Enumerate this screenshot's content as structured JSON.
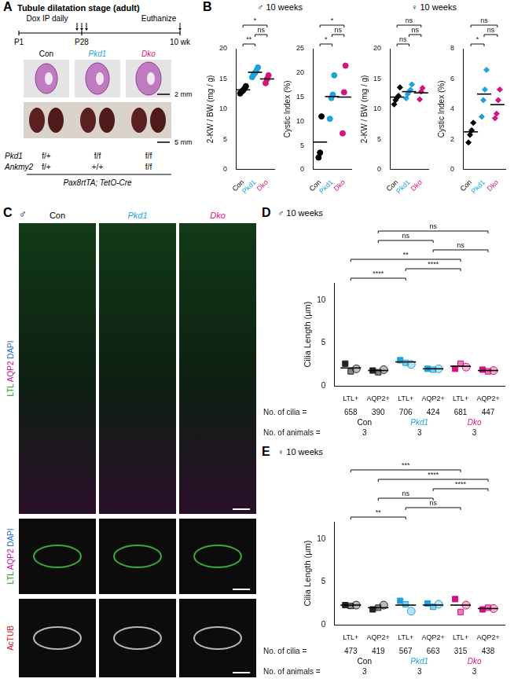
{
  "panel_a": {
    "label": "A",
    "title": "Tubule dilatation stage (adult)",
    "timeline": [
      "P1",
      "P28",
      "10 wk"
    ],
    "injection": "Dox IP daily",
    "endpoint": "Euthanize",
    "groups": [
      "Con",
      "Pkd1",
      "Dko"
    ],
    "group_colors": [
      "#000000",
      "#1fa2dc",
      "#d6127f"
    ],
    "scale_bars": [
      "2 mm",
      "5 mm"
    ],
    "genotypes": [
      {
        "gene": "Pkd1",
        "values": [
          "f/+",
          "f/f",
          "f/f"
        ]
      },
      {
        "gene": "Ankmy2",
        "values": [
          "f/+",
          "+/+",
          "f/f"
        ]
      }
    ],
    "driver": "Pax8rtTA; TetO-Cre"
  },
  "panel_b": {
    "label": "B",
    "headers": [
      "♂ 10 weeks",
      "♀ 10 weeks"
    ]
  },
  "panel_c": {
    "label": "C",
    "sex": "♂",
    "groups": [
      "Con",
      "Pkd1",
      "Dko"
    ],
    "group_colors": [
      "#000000",
      "#1fa2dc",
      "#d6127f"
    ],
    "stains": [
      [
        {
          "text": "LTL",
          "color": "#1a9e1a"
        },
        {
          "text": "AQP2",
          "color": "#c0169c"
        },
        {
          "text": "DAPI",
          "color": "#1f6fd0"
        }
      ],
      [
        {
          "text": "LTL",
          "color": "#1a9e1a"
        },
        {
          "text": "AQP2",
          "color": "#c0169c"
        },
        {
          "text": "DAPI",
          "color": "#1f6fd0"
        }
      ],
      [
        {
          "text": "AcTUB",
          "color": "#d0202b"
        }
      ]
    ]
  },
  "chart_data": [
    {
      "type": "scatter",
      "panel": "B",
      "y_label": "2-KW / BW (mg / g)",
      "categories": [
        "Con",
        "Pkd1",
        "Dko"
      ],
      "colors": [
        "#000000",
        "#1fa2dc",
        "#d6127f"
      ],
      "marker": "circle",
      "grid": false,
      "values": [
        [
          12.6,
          12.9,
          13.1,
          13.4,
          13.8
        ],
        [
          15.3,
          15.7,
          16.0,
          16.4,
          16.9
        ],
        [
          14.3,
          15.0,
          15.6
        ]
      ],
      "means": [
        13.2,
        16.1,
        15.0
      ],
      "ylim": [
        0,
        20
      ],
      "yticks": [
        0,
        5,
        10,
        15,
        20
      ],
      "significance": [
        {
          "from": 0,
          "to": 1,
          "label": "**"
        },
        {
          "from": 1,
          "to": 2,
          "label": "ns"
        },
        {
          "from": 0,
          "to": 2,
          "label": "*"
        }
      ]
    },
    {
      "type": "scatter",
      "panel": "B",
      "y_label": "Cystic Index (%)",
      "categories": [
        "Con",
        "Pkd1",
        "Dko"
      ],
      "colors": [
        "#000000",
        "#1fa2dc",
        "#d6127f"
      ],
      "marker": "circle",
      "grid": false,
      "values": [
        [
          2.5,
          3.5,
          11.0
        ],
        [
          10.5,
          14.8,
          15.5,
          19.5
        ],
        [
          7.5,
          16.0,
          21.5
        ]
      ],
      "means": [
        5.7,
        15.1,
        15.0
      ],
      "ylim": [
        0,
        25
      ],
      "yticks": [
        0,
        5,
        10,
        15,
        20,
        25
      ],
      "significance": [
        {
          "from": 0,
          "to": 1,
          "label": "*"
        },
        {
          "from": 1,
          "to": 2,
          "label": "ns"
        },
        {
          "from": 0,
          "to": 2,
          "label": "*"
        }
      ]
    },
    {
      "type": "scatter",
      "panel": "B",
      "y_label": "2-KW / BW (mg / g)",
      "categories": [
        "Con",
        "Pkd1",
        "Dko"
      ],
      "colors": [
        "#000000",
        "#1fa2dc",
        "#d6127f"
      ],
      "marker": "diamond",
      "grid": false,
      "values": [
        [
          10.8,
          11.5,
          11.9,
          12.2,
          13.6
        ],
        [
          11.8,
          12.5,
          12.9,
          13.2,
          14.1
        ],
        [
          11.6,
          12.9,
          13.5
        ]
      ],
      "means": [
        12.0,
        12.9,
        12.7
      ],
      "ylim": [
        0,
        20
      ],
      "yticks": [
        0,
        5,
        10,
        15,
        20
      ],
      "significance": [
        {
          "from": 0,
          "to": 1,
          "label": "ns"
        },
        {
          "from": 1,
          "to": 2,
          "label": "ns"
        },
        {
          "from": 0,
          "to": 2,
          "label": "ns"
        }
      ]
    },
    {
      "type": "scatter",
      "panel": "B",
      "y_label": "Cystic Index (%)",
      "categories": [
        "Con",
        "Pkd1",
        "Dko"
      ],
      "colors": [
        "#000000",
        "#1fa2dc",
        "#d6127f"
      ],
      "marker": "diamond",
      "grid": false,
      "values": [
        [
          1.8,
          2.3,
          2.6,
          3.1
        ],
        [
          3.5,
          4.6,
          5.3,
          6.6
        ],
        [
          3.4,
          3.7,
          4.6,
          5.3
        ]
      ],
      "means": [
        2.5,
        5.0,
        4.3
      ],
      "ylim": [
        0,
        8
      ],
      "yticks": [
        0,
        2,
        4,
        6,
        8
      ],
      "significance": [
        {
          "from": 0,
          "to": 1,
          "label": "*"
        },
        {
          "from": 1,
          "to": 2,
          "label": "ns"
        },
        {
          "from": 0,
          "to": 2,
          "label": "ns"
        }
      ]
    },
    {
      "type": "scatter",
      "panel": "D",
      "label": "D",
      "header": "♂ 10 weeks",
      "y_label": "Cilia Length (µm)",
      "categories": [
        "LTL+",
        "AQP2+",
        "LTL+",
        "AQP2+",
        "LTL+",
        "AQP2+"
      ],
      "colors": [
        "#222222",
        "#222222",
        "#1fa2dc",
        "#1fa2dc",
        "#d6127f",
        "#d6127f"
      ],
      "grid": false,
      "animal_means": [
        [
          2.6,
          1.7,
          2.0
        ],
        [
          1.8,
          1.6,
          1.9
        ],
        [
          3.0,
          2.7,
          2.5
        ],
        [
          2.0,
          1.9,
          2.0
        ],
        [
          2.0,
          2.6,
          2.2
        ],
        [
          1.9,
          1.7,
          1.8
        ]
      ],
      "means": [
        2.1,
        1.8,
        2.8,
        2.0,
        2.3,
        1.8
      ],
      "count_label": "No. of cilia =",
      "cilia_counts": [
        658,
        390,
        706,
        424,
        681,
        447
      ],
      "groups": [
        "Con",
        "Pkd1",
        "Dko"
      ],
      "group_colors": [
        "#000000",
        "#1fa2dc",
        "#d6127f"
      ],
      "animals_label": "No. of animals =",
      "animals": [
        3,
        3,
        3
      ],
      "ylim": [
        0,
        12
      ],
      "yticks": [
        0,
        5,
        10
      ],
      "significance": [
        {
          "from": 0,
          "to": 2,
          "label": "****"
        },
        {
          "from": 2,
          "to": 4,
          "label": "****"
        },
        {
          "from": 0,
          "to": 4,
          "label": "**"
        },
        {
          "from": 3,
          "to": 5,
          "label": "ns"
        },
        {
          "from": 1,
          "to": 3,
          "label": "ns"
        },
        {
          "from": 1,
          "to": 5,
          "label": "ns"
        }
      ]
    },
    {
      "type": "scatter",
      "panel": "E",
      "label": "E",
      "header": "♀ 10 weeks",
      "y_label": "Cilia Length (µm)",
      "categories": [
        "LTL+",
        "AQP2+",
        "LTL+",
        "AQP2+",
        "LTL+",
        "AQP2+"
      ],
      "colors": [
        "#222222",
        "#222222",
        "#1fa2dc",
        "#1fa2dc",
        "#d6127f",
        "#d6127f"
      ],
      "grid": false,
      "animal_means": [
        [
          2.3,
          2.2,
          2.3
        ],
        [
          1.8,
          2.0,
          2.3
        ],
        [
          2.8,
          2.4,
          1.6
        ],
        [
          2.5,
          2.1,
          2.4
        ],
        [
          3.0,
          1.5,
          2.3
        ],
        [
          1.8,
          2.0,
          1.9
        ]
      ],
      "means": [
        2.3,
        2.0,
        2.3,
        2.3,
        2.3,
        1.9
      ],
      "count_label": "No. of cilia =",
      "cilia_counts": [
        473,
        419,
        567,
        663,
        315,
        438
      ],
      "groups": [
        "Con",
        "Pkd1",
        "Dko"
      ],
      "group_colors": [
        "#000000",
        "#1fa2dc",
        "#d6127f"
      ],
      "animals_label": "No. of animals =",
      "animals": [
        3,
        3,
        3
      ],
      "ylim": [
        0,
        12
      ],
      "yticks": [
        0,
        5,
        10
      ],
      "significance": [
        {
          "from": 0,
          "to": 2,
          "label": "**"
        },
        {
          "from": 2,
          "to": 4,
          "label": "ns"
        },
        {
          "from": 1,
          "to": 3,
          "label": "ns"
        },
        {
          "from": 3,
          "to": 5,
          "label": "****"
        },
        {
          "from": 1,
          "to": 5,
          "label": "****"
        },
        {
          "from": 0,
          "to": 4,
          "label": "***"
        }
      ]
    }
  ]
}
